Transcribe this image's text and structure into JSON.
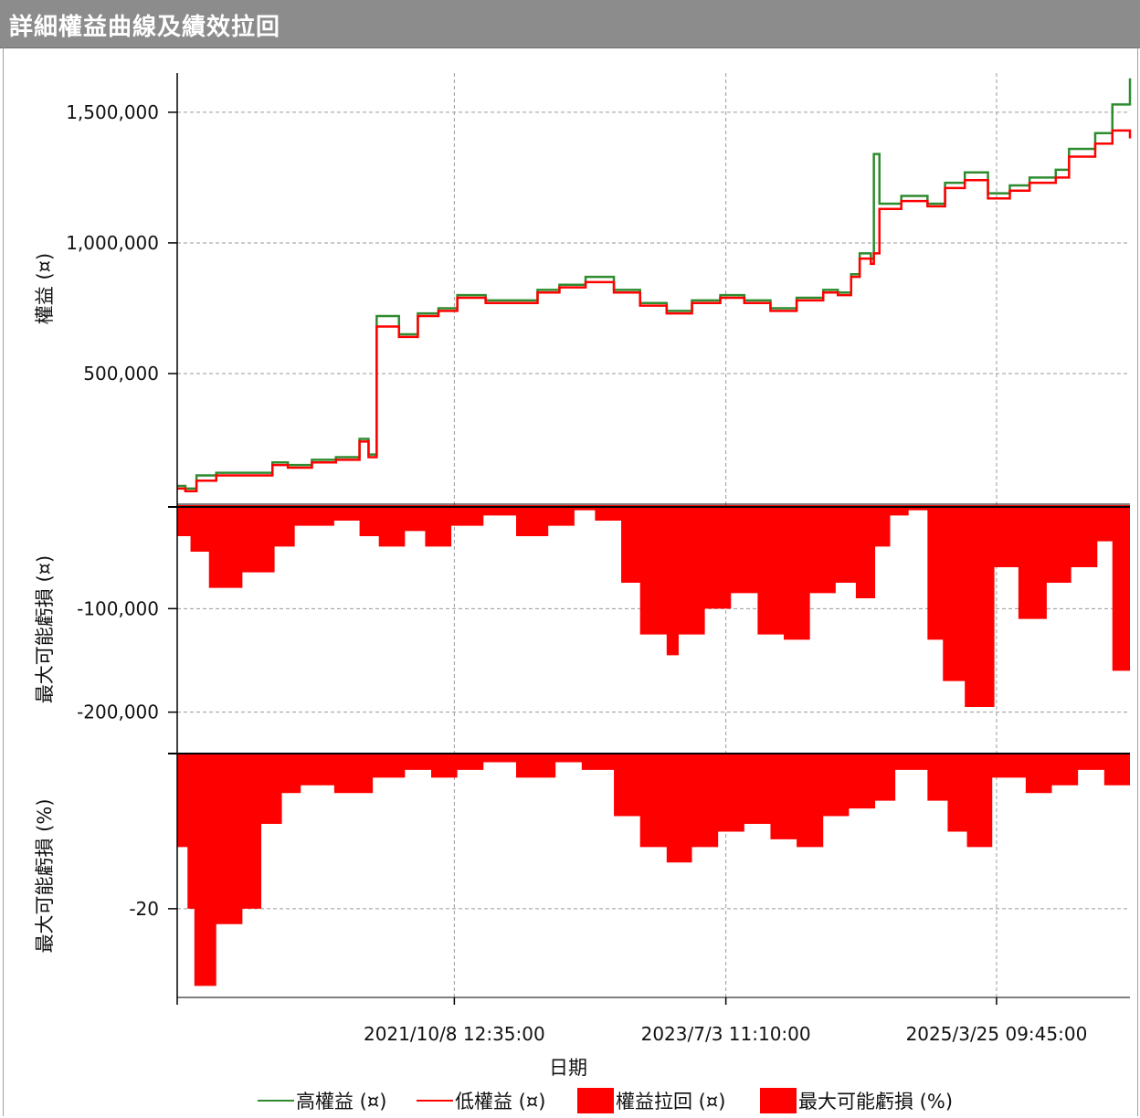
{
  "window": {
    "title": "詳細權益曲線及績效拉回"
  },
  "chart_data": {
    "type": "line",
    "x_axis": {
      "label": "日期",
      "range": [
        "2020/1/1",
        "2026/1/30"
      ],
      "ticks": [
        "2021/10/8 12:35:00",
        "2023/7/3 11:10:00",
        "2025/3/25 09:45:00"
      ]
    },
    "panels": [
      {
        "id": "equity",
        "type": "line",
        "ylabel": "權益 (¤)",
        "ylim": [
          0,
          1650000
        ],
        "yticks": [
          500000,
          1000000,
          1500000
        ],
        "ytick_labels": [
          "500,000",
          "1,000,000",
          "1,500,000"
        ],
        "series": [
          {
            "name": "高權益 (¤)",
            "color": "#2e8b2e"
          },
          {
            "name": "低權益 (¤)",
            "color": "#ff0000"
          }
        ],
        "x": [
          "2020/1/1",
          "2020/1/20",
          "2020/2/15",
          "2020/4/1",
          "2020/6/1",
          "2020/8/10",
          "2020/9/15",
          "2020/11/10",
          "2021/1/5",
          "2021/3/1",
          "2021/3/22",
          "2021/4/10",
          "2021/6/1",
          "2021/7/15",
          "2021/9/1",
          "2021/10/15",
          "2021/12/20",
          "2022/2/15",
          "2022/4/20",
          "2022/6/10",
          "2022/8/10",
          "2022/10/15",
          "2022/12/15",
          "2023/2/15",
          "2023/4/15",
          "2023/6/20",
          "2023/8/15",
          "2023/10/15",
          "2023/12/15",
          "2024/2/15",
          "2024/3/20",
          "2024/4/20",
          "2024/5/10",
          "2024/6/5",
          "2024/6/12",
          "2024/6/25",
          "2024/8/15",
          "2024/10/15",
          "2024/11/25",
          "2025/1/10",
          "2025/3/5",
          "2025/4/25",
          "2025/6/10",
          "2025/8/10",
          "2025/9/10",
          "2025/11/10",
          "2025/12/20",
          "2026/1/30"
        ],
        "low": [
          60000,
          50000,
          90000,
          110000,
          110000,
          150000,
          140000,
          160000,
          170000,
          240000,
          180000,
          680000,
          640000,
          720000,
          740000,
          790000,
          770000,
          770000,
          810000,
          830000,
          850000,
          810000,
          760000,
          730000,
          770000,
          790000,
          770000,
          740000,
          780000,
          810000,
          800000,
          870000,
          940000,
          920000,
          960000,
          1130000,
          1160000,
          1140000,
          1210000,
          1240000,
          1170000,
          1200000,
          1230000,
          1250000,
          1330000,
          1380000,
          1430000,
          1400000
        ],
        "high": [
          70000,
          60000,
          110000,
          120000,
          120000,
          160000,
          150000,
          170000,
          180000,
          250000,
          190000,
          720000,
          650000,
          730000,
          750000,
          800000,
          780000,
          780000,
          820000,
          840000,
          870000,
          820000,
          770000,
          740000,
          780000,
          800000,
          780000,
          750000,
          790000,
          820000,
          810000,
          880000,
          960000,
          940000,
          1340000,
          1150000,
          1180000,
          1150000,
          1230000,
          1270000,
          1190000,
          1220000,
          1250000,
          1280000,
          1360000,
          1420000,
          1530000,
          1630000
        ]
      },
      {
        "id": "drawdown_value",
        "type": "area",
        "ylabel": "最大可能虧損 (¤)",
        "ylim": [
          -240000,
          0
        ],
        "yticks": [
          -100000,
          -200000
        ],
        "ytick_labels": [
          "-100,000",
          "-200,000"
        ],
        "series": [
          {
            "name": "權益拉回 (¤)",
            "color": "#ff0000"
          }
        ],
        "x": [
          "2020/1/1",
          "2020/2/1",
          "2020/3/15",
          "2020/6/1",
          "2020/8/15",
          "2020/10/1",
          "2021/1/1",
          "2021/3/1",
          "2021/4/15",
          "2021/6/15",
          "2021/8/1",
          "2021/10/1",
          "2021/12/15",
          "2022/3/1",
          "2022/5/15",
          "2022/7/15",
          "2022/9/1",
          "2022/11/1",
          "2022/12/15",
          "2023/2/15",
          "2023/3/15",
          "2023/5/15",
          "2023/7/15",
          "2023/9/15",
          "2023/11/15",
          "2024/1/15",
          "2024/3/15",
          "2024/5/1",
          "2024/6/15",
          "2024/7/20",
          "2024/9/1",
          "2024/10/15",
          "2024/11/20",
          "2025/1/10",
          "2025/3/20",
          "2025/5/15",
          "2025/7/20",
          "2025/9/15",
          "2025/11/15",
          "2025/12/20",
          "2026/1/30"
        ],
        "values": [
          -30000,
          -45000,
          -80000,
          -65000,
          -40000,
          -20000,
          -15000,
          -30000,
          -40000,
          -25000,
          -40000,
          -20000,
          -10000,
          -30000,
          -20000,
          -5000,
          -15000,
          -75000,
          -125000,
          -145000,
          -125000,
          -100000,
          -85000,
          -125000,
          -130000,
          -85000,
          -75000,
          -90000,
          -40000,
          -10000,
          -5000,
          -130000,
          -170000,
          -195000,
          -60000,
          -110000,
          -75000,
          -60000,
          -35000,
          -160000,
          -200000
        ]
      },
      {
        "id": "drawdown_pct",
        "type": "area",
        "ylabel": "最大可能虧損 (%)",
        "ylim": [
          -31.5,
          0
        ],
        "yticks": [
          -20
        ],
        "ytick_labels": [
          "-20"
        ],
        "series": [
          {
            "name": "最大可能虧損 (%)",
            "color": "#ff0000"
          }
        ],
        "x": [
          "2020/1/1",
          "2020/1/25",
          "2020/2/10",
          "2020/4/1",
          "2020/6/1",
          "2020/7/15",
          "2020/9/1",
          "2020/10/15",
          "2021/1/1",
          "2021/4/1",
          "2021/6/15",
          "2021/8/15",
          "2021/10/15",
          "2021/12/15",
          "2022/3/1",
          "2022/6/1",
          "2022/8/1",
          "2022/10/15",
          "2022/12/15",
          "2023/2/15",
          "2023/4/15",
          "2023/6/15",
          "2023/8/15",
          "2023/10/15",
          "2023/12/15",
          "2024/2/15",
          "2024/4/15",
          "2024/6/15",
          "2024/8/1",
          "2024/10/15",
          "2024/12/1",
          "2025/1/15",
          "2025/3/15",
          "2025/6/1",
          "2025/8/1",
          "2025/10/1",
          "2025/12/1",
          "2026/1/30"
        ],
        "values": [
          -12,
          -20,
          -30,
          -22,
          -20,
          -9,
          -5,
          -4,
          -5,
          -3,
          -2,
          -3,
          -2,
          -1,
          -3,
          -1,
          -2,
          -8,
          -12,
          -14,
          -12,
          -10,
          -9,
          -11,
          -12,
          -8,
          -7,
          -6,
          -2,
          -6,
          -10,
          -12,
          -3,
          -5,
          -4,
          -2,
          -4,
          -8
        ]
      }
    ],
    "legend": {
      "placement": "bottom",
      "entries": [
        {
          "label": "高權益 (¤)",
          "color": "#2e8b2e",
          "kind": "line"
        },
        {
          "label": "低權益 (¤)",
          "color": "#ff0000",
          "kind": "line"
        },
        {
          "label": "權益拉回 (¤)",
          "color": "#ff0000",
          "kind": "box"
        },
        {
          "label": "最大可能虧損 (%)",
          "color": "#ff0000",
          "kind": "box"
        }
      ]
    },
    "grid": true
  }
}
